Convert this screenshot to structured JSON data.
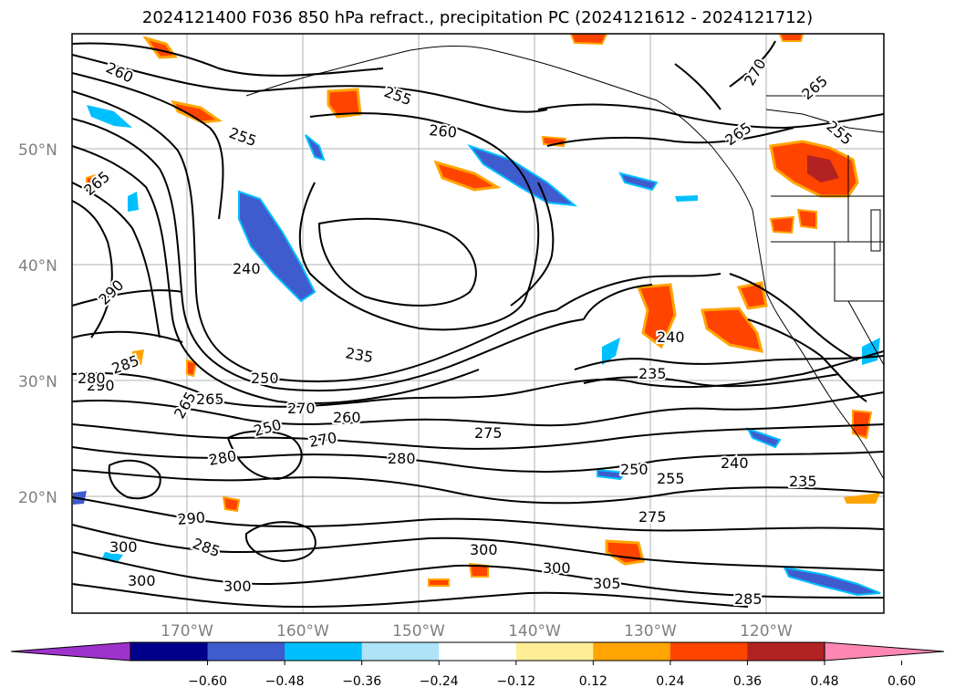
{
  "title": "2024121400 F036 850 hPa refract., precipitation PC (2024121612 - 2024121712)",
  "lat_labels": [
    "50°N",
    "40°N",
    "30°N",
    "20°N"
  ],
  "lon_labels": [
    "170°W",
    "160°W",
    "150°W",
    "140°W",
    "130°W",
    "120°W"
  ],
  "contour_labels": [
    "260",
    "255",
    "255",
    "260",
    "265",
    "265",
    "270",
    "265",
    "240",
    "290",
    "285",
    "290",
    "280",
    "235",
    "265",
    "240",
    "250",
    "265",
    "270",
    "260",
    "250",
    "280",
    "270",
    "280",
    "275",
    "235",
    "240",
    "250",
    "255",
    "235",
    "275",
    "300",
    "290",
    "285",
    "300",
    "300",
    "305",
    "300",
    "285",
    "300",
    "255"
  ],
  "colorbar": {
    "colors": [
      "#9e32cd",
      "#00008b",
      "#3e5ccd",
      "#00bfff",
      "#afe3f8",
      "#ffffff",
      "#ffee96",
      "#ffa400",
      "#ff4400",
      "#b22222",
      "#ff87b4"
    ],
    "tick_labels": [
      "−0.60",
      "−0.48",
      "−0.36",
      "−0.24",
      "−0.12",
      "0.12",
      "0.24",
      "0.36",
      "0.48",
      "0.60"
    ]
  }
}
